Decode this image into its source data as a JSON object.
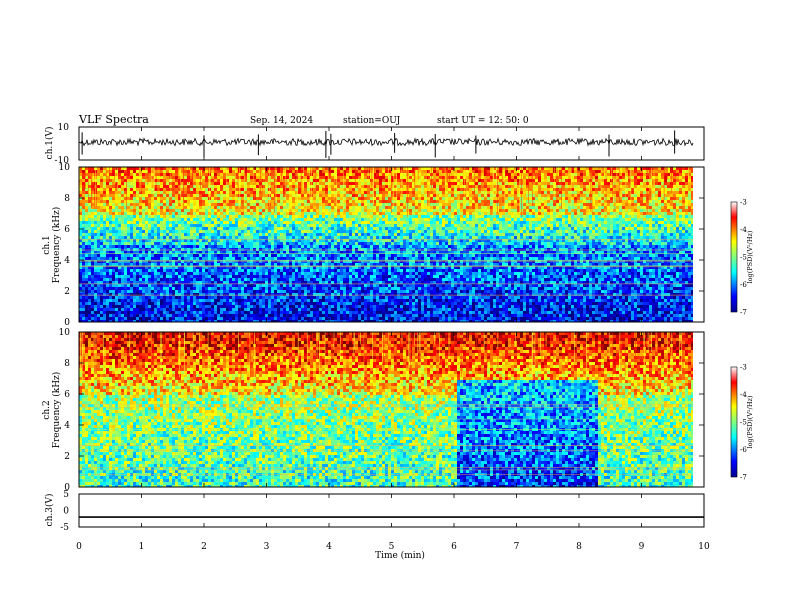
{
  "header": {
    "title": "VLF Spectra",
    "date": "Sep. 14, 2024",
    "station": "station=OUJ",
    "start": "start  UT  =   12: 50: 0"
  },
  "chart_data": [
    {
      "type": "line",
      "name": "ch1-waveform",
      "ylabel": "ch.1(V)",
      "ylim": [
        -10,
        10
      ],
      "yticks": [
        "10",
        "-10"
      ],
      "xlim": [
        0,
        10
      ],
      "baseline_v": 0,
      "note_visible": "noisy waveform near 0 V with sparse spikes"
    },
    {
      "type": "heatmap",
      "name": "ch1-spectrogram",
      "ylabel": "ch.1\nFrequency (kHz)",
      "ylim": [
        0,
        10
      ],
      "yticks": [
        "0",
        "2",
        "4",
        "6",
        "8",
        "10"
      ],
      "xlim": [
        0,
        10
      ],
      "colorbar": {
        "label": "log(PSD)(V²/Hz)",
        "ticks": [
          "-3",
          "-4",
          "-5",
          "-6",
          "-7"
        ],
        "range": [
          -7,
          -3
        ]
      }
    },
    {
      "type": "heatmap",
      "name": "ch2-spectrogram",
      "ylabel": "ch.2\nFrequency (kHz)",
      "ylim": [
        0,
        10
      ],
      "yticks": [
        "0",
        "2",
        "4",
        "6",
        "8",
        "10"
      ],
      "xlim": [
        0,
        10
      ],
      "colorbar": {
        "label": "log(PSD)(V²/Hz)",
        "ticks": [
          "-3",
          "-4",
          "-5",
          "-6",
          "-7"
        ],
        "range": [
          -7,
          -3
        ]
      },
      "quiet_interval_min": [
        6.0,
        8.3
      ]
    },
    {
      "type": "line",
      "name": "ch3-waveform",
      "ylabel": "ch.3(V)",
      "ylim": [
        -5,
        5
      ],
      "yticks": [
        "5",
        "0",
        "-5"
      ],
      "xlim": [
        0,
        10
      ],
      "level_v": -2
    }
  ],
  "xaxis": {
    "label": "Time (min)",
    "ticks": [
      "0",
      "1",
      "2",
      "3",
      "4",
      "5",
      "6",
      "7",
      "8",
      "9",
      "10"
    ]
  },
  "colors": {
    "jet": [
      "#00008f",
      "#0000ff",
      "#00ffff",
      "#80ff80",
      "#ffff00",
      "#ff8000",
      "#ff0000",
      "#800000"
    ]
  }
}
